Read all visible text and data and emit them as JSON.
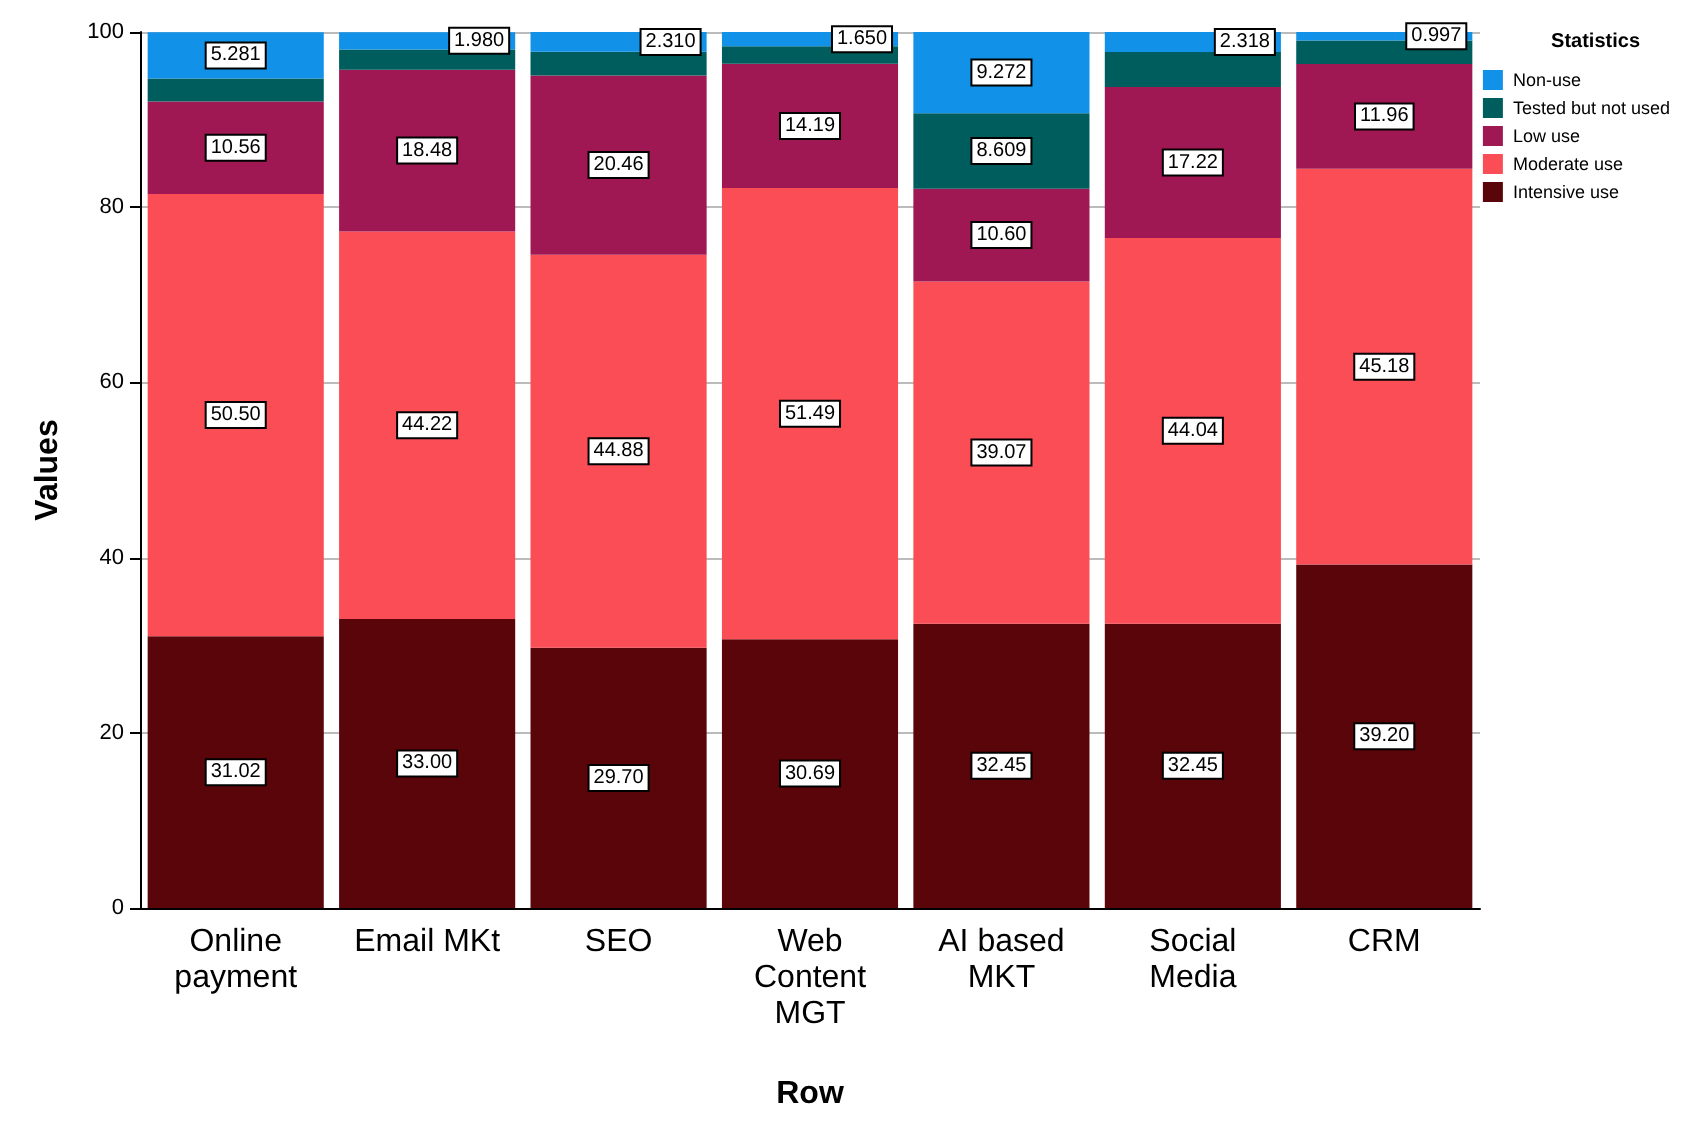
{
  "chart_data": {
    "type": "bar",
    "stacked": true,
    "xlabel": "Row",
    "ylabel": "Values",
    "legend_title": "Statistics",
    "legend": "top right",
    "grid": "y",
    "categories": [
      "Online\npayment",
      "Email MKt",
      "SEO",
      "Web\nContent\nMGT",
      "AI based\nMKT",
      "Social\nMedia",
      "CRM"
    ],
    "ylim": [
      0,
      100
    ],
    "yticks": [
      0,
      20,
      40,
      60,
      80,
      100
    ],
    "series": [
      {
        "name": "Intensive use",
        "color": "#5a0509",
        "values": [
          31.02,
          33.0,
          29.7,
          30.69,
          32.45,
          32.45,
          39.2
        ],
        "value_labels": [
          "31.02",
          "33.00",
          "29.70",
          "30.69",
          "32.45",
          "32.45",
          "39.20"
        ]
      },
      {
        "name": "Moderate use",
        "color": "#fa4d56",
        "values": [
          50.5,
          44.22,
          44.88,
          51.49,
          39.07,
          44.04,
          45.18
        ],
        "value_labels": [
          "50.50",
          "44.22",
          "44.88",
          "51.49",
          "39.07",
          "44.04",
          "45.18"
        ]
      },
      {
        "name": "Low use",
        "color": "#9f1853",
        "values": [
          10.56,
          18.48,
          20.46,
          14.19,
          10.6,
          17.22,
          11.96
        ],
        "value_labels": [
          "10.56",
          "18.48",
          "20.46",
          "14.19",
          "10.60",
          "17.22",
          "11.96"
        ]
      },
      {
        "name": "Tested but not used",
        "color": "#005d5d",
        "values": [
          2.6,
          2.3,
          2.7,
          2.0,
          8.609,
          4.0,
          2.7
        ],
        "value_labels": [
          null,
          null,
          null,
          null,
          "8.609",
          null,
          null
        ]
      },
      {
        "name": "Non-use",
        "color": "#1192e8",
        "values": [
          5.281,
          1.98,
          2.31,
          1.65,
          9.272,
          2.318,
          0.997
        ],
        "value_labels": [
          "5.281",
          "1.980",
          "2.310",
          "1.650",
          "9.272",
          "2.318",
          "0.997"
        ]
      }
    ]
  }
}
